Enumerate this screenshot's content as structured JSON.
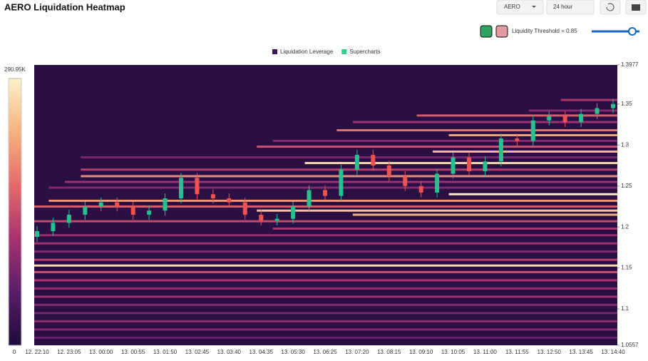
{
  "controls": {
    "symbol": "AERO",
    "interval": "24 hour",
    "threshold_label": "Liquidity Threshold = 0.85",
    "threshold": 0.85
  },
  "chart_data": {
    "type": "heatmap",
    "title": "AERO Liquidation Heatmap",
    "series": [
      {
        "name": "Liquidation Leverage",
        "color": "#3b1a5a"
      },
      {
        "name": "Supercharts",
        "color": "#2fd08a"
      }
    ],
    "ylim": [
      1.0557,
      1.3977
    ],
    "yticks": [
      1.0557,
      1.1,
      1.15,
      1.2,
      1.25,
      1.3,
      1.35,
      1.3977
    ],
    "categories": [
      "12. 22:10",
      "12. 23:05",
      "13. 00:00",
      "13. 00:55",
      "13. 01:50",
      "13. 02:45",
      "13. 03:40",
      "13. 04:35",
      "13. 05:30",
      "13. 06:25",
      "13. 07:20",
      "13. 08:15",
      "13. 09:10",
      "13. 10:05",
      "13. 11:00",
      "13. 11:55",
      "13. 12:50",
      "13. 13:45",
      "13. 14:40"
    ],
    "colorbar": {
      "lim": [
        0,
        290950
      ],
      "ticks": [
        0,
        {
          "value": 290950,
          "label": "290.95K"
        }
      ]
    },
    "colorscale": [
      "#1e0b3a",
      "#5a1d6a",
      "#a8326f",
      "#e56a6a",
      "#f6b27e",
      "#fbf1c9"
    ],
    "background": "#2a0f45",
    "up_color": "#26c18e",
    "down_color": "#ef5350",
    "candles": {
      "open": [
        1.188,
        1.195,
        1.205,
        1.215,
        1.225,
        1.23,
        1.225,
        1.215,
        1.22,
        1.235,
        1.26,
        1.24,
        1.235,
        1.23,
        1.215,
        1.208,
        1.21,
        1.225,
        1.245,
        1.238,
        1.27,
        1.288,
        1.275,
        1.262,
        1.25,
        1.242,
        1.265,
        1.285,
        1.268,
        1.28,
        1.308,
        1.305,
        1.33,
        1.335,
        1.328,
        1.338,
        1.345
      ],
      "close": [
        1.195,
        1.205,
        1.215,
        1.225,
        1.23,
        1.225,
        1.215,
        1.22,
        1.235,
        1.26,
        1.24,
        1.235,
        1.23,
        1.215,
        1.208,
        1.21,
        1.225,
        1.245,
        1.238,
        1.27,
        1.288,
        1.275,
        1.262,
        1.25,
        1.242,
        1.265,
        1.285,
        1.268,
        1.28,
        1.308,
        1.305,
        1.33,
        1.335,
        1.328,
        1.338,
        1.345,
        1.35
      ],
      "high": [
        1.201,
        1.211,
        1.221,
        1.231,
        1.236,
        1.236,
        1.231,
        1.226,
        1.241,
        1.266,
        1.266,
        1.246,
        1.241,
        1.236,
        1.221,
        1.216,
        1.231,
        1.251,
        1.251,
        1.276,
        1.294,
        1.294,
        1.281,
        1.268,
        1.256,
        1.271,
        1.291,
        1.291,
        1.286,
        1.314,
        1.314,
        1.336,
        1.341,
        1.341,
        1.344,
        1.351,
        1.356
      ],
      "low": [
        1.182,
        1.189,
        1.199,
        1.209,
        1.219,
        1.219,
        1.209,
        1.209,
        1.214,
        1.229,
        1.234,
        1.229,
        1.224,
        1.209,
        1.202,
        1.202,
        1.204,
        1.219,
        1.232,
        1.232,
        1.264,
        1.269,
        1.256,
        1.244,
        1.236,
        1.236,
        1.259,
        1.262,
        1.262,
        1.274,
        1.299,
        1.299,
        1.324,
        1.322,
        1.322,
        1.332,
        1.339
      ]
    },
    "bands": {
      "price": [
        1.355,
        1.342,
        1.336,
        1.328,
        1.318,
        1.312,
        1.305,
        1.298,
        1.292,
        1.285,
        1.278,
        1.27,
        1.262,
        1.255,
        1.248,
        1.24,
        1.232,
        1.225,
        1.22,
        1.215,
        1.207,
        1.198,
        1.19,
        1.18,
        1.17,
        1.16,
        1.153,
        1.145,
        1.135,
        1.125,
        1.115,
        1.105,
        1.095,
        1.085,
        1.075,
        1.065
      ],
      "start": [
        33,
        31,
        24,
        20,
        19,
        26,
        15,
        14,
        25,
        3,
        17,
        3,
        3,
        2,
        1,
        26,
        1,
        0,
        14,
        20,
        0,
        15,
        0,
        0,
        0,
        0,
        0,
        0,
        0,
        0,
        0,
        0,
        0,
        0,
        0,
        0
      ],
      "value": [
        120000,
        90000,
        160000,
        110000,
        180000,
        220000,
        90000,
        150000,
        240000,
        80000,
        270000,
        130000,
        200000,
        110000,
        90000,
        290000,
        210000,
        160000,
        250000,
        230000,
        140000,
        120000,
        100000,
        110000,
        90000,
        130000,
        270000,
        150000,
        120000,
        100000,
        110000,
        90000,
        80000,
        100000,
        90000,
        70000
      ]
    }
  }
}
